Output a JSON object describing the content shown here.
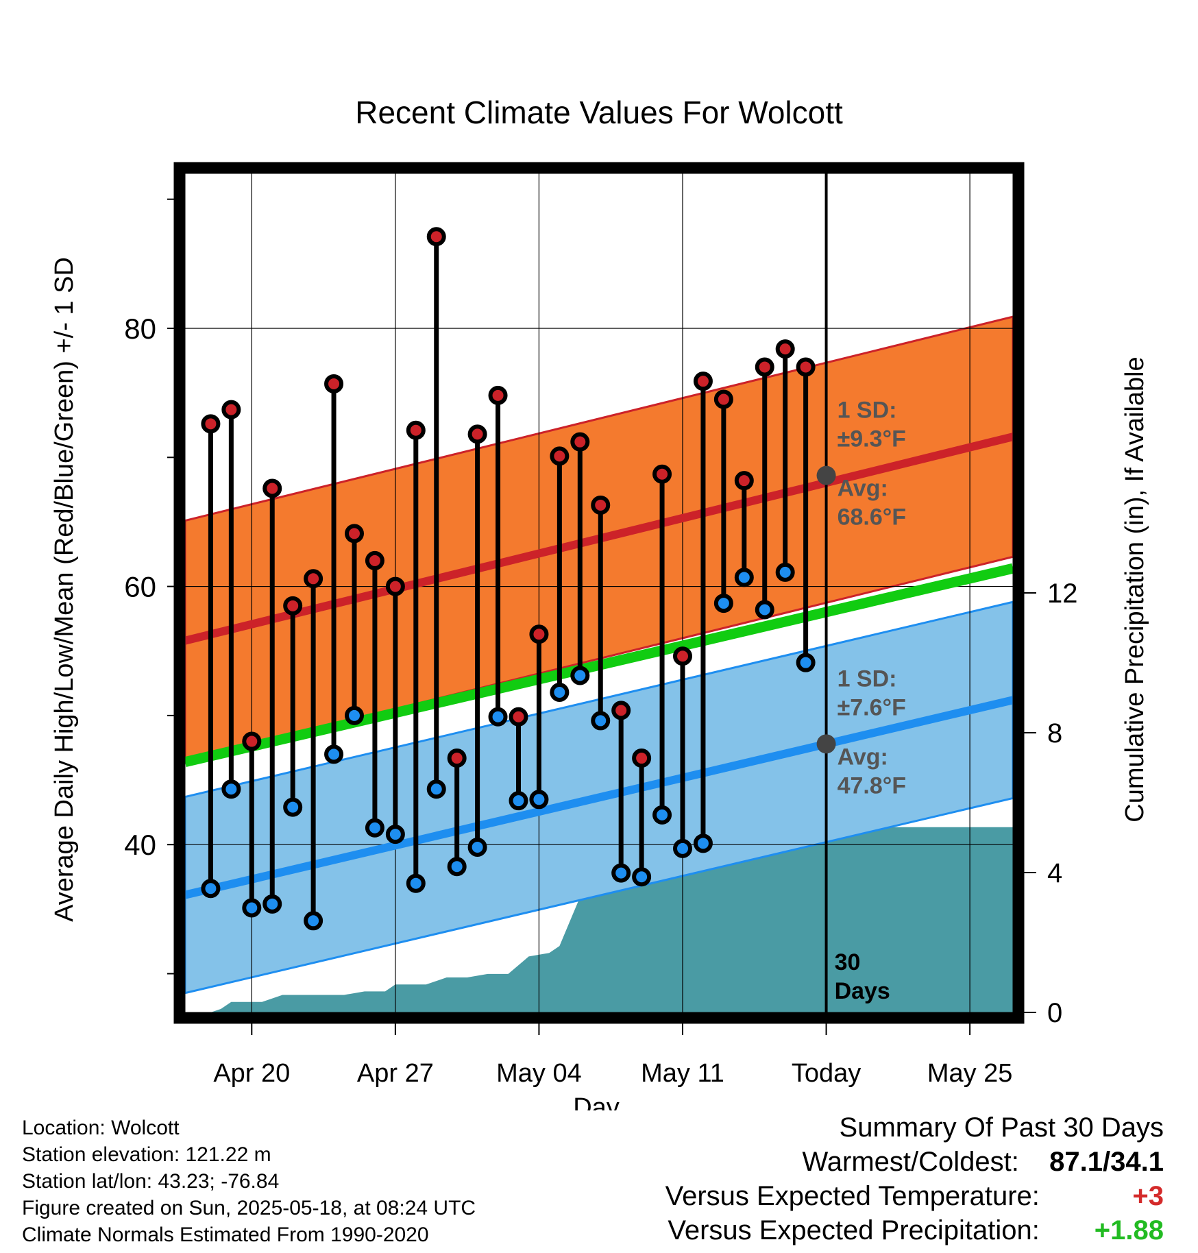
{
  "chart_data": {
    "type": "line",
    "title": "Recent Climate Values For Wolcott",
    "xlabel": "Day",
    "ylabel": "Average Daily High/Low/Mean (Red/Blue/Green) +/- 1 SD",
    "y2label": "Cumulative Precipitation (in), If Available",
    "ylim": [
      27,
      92
    ],
    "y2lim": [
      0,
      24
    ],
    "x_tick_labels": [
      "Apr 20",
      "Apr 27",
      "May 04",
      "May 11",
      "Today",
      "May 25"
    ],
    "x_tick_days": [
      2,
      9,
      16,
      23,
      30,
      37
    ],
    "xlim": [
      -1.25,
      39.1
    ],
    "y_tick_labels": [
      "40",
      "60",
      "80"
    ],
    "y_tick_values": [
      40,
      60,
      80
    ],
    "y2_tick_labels": [
      "0",
      "4",
      "8",
      "12"
    ],
    "y2_tick_values": [
      0,
      4,
      8,
      12
    ],
    "daily_high": [
      72.6,
      73.7,
      48.0,
      67.6,
      58.5,
      60.6,
      75.7,
      64.1,
      62.0,
      60.0,
      72.1,
      87.1,
      46.7,
      71.8,
      74.8,
      49.9,
      56.3,
      70.1,
      71.2,
      66.3,
      50.4,
      46.7,
      68.7,
      54.6,
      75.9,
      74.5,
      68.2,
      77.0,
      78.4,
      77.0
    ],
    "daily_low": [
      36.6,
      44.3,
      35.1,
      35.4,
      42.9,
      34.1,
      47.0,
      50.0,
      41.3,
      40.8,
      37.0,
      44.3,
      38.3,
      39.8,
      49.9,
      43.4,
      43.5,
      51.8,
      53.1,
      49.6,
      37.8,
      37.5,
      42.3,
      39.7,
      40.1,
      58.7,
      60.7,
      58.2,
      61.1,
      54.1
    ],
    "normal_high": {
      "name": "Avg:",
      "value_label": "68.6°F",
      "sd_label": "±9.3°F",
      "start": 55.8,
      "end": 71.6,
      "today": 68.6,
      "sd": 9.3
    },
    "normal_low": {
      "name": "Avg:",
      "value_label": "47.8°F",
      "sd_label": "±7.6°F",
      "start": 36.1,
      "end": 51.2,
      "today": 47.8,
      "sd": 7.6
    },
    "normal_mean": {
      "start": 46.4,
      "end": 61.4
    },
    "sd_heading": "1 SD:",
    "precip_cumulative": [
      [
        0.0,
        0.0
      ],
      [
        0.5,
        0.1
      ],
      [
        1.0,
        0.3
      ],
      [
        1.5,
        0.3
      ],
      [
        2.5,
        0.3
      ],
      [
        3.5,
        0.5
      ],
      [
        4.5,
        0.5
      ],
      [
        6.5,
        0.5
      ],
      [
        7.5,
        0.6
      ],
      [
        8.5,
        0.6
      ],
      [
        9.0,
        0.8
      ],
      [
        10.5,
        0.8
      ],
      [
        11.5,
        1.0
      ],
      [
        12.5,
        1.0
      ],
      [
        13.5,
        1.1
      ],
      [
        14.5,
        1.1
      ],
      [
        15.5,
        1.6
      ],
      [
        16.5,
        1.7
      ],
      [
        17.0,
        1.9
      ],
      [
        17.5,
        2.6
      ],
      [
        18.0,
        3.3
      ],
      [
        18.5,
        4.2
      ],
      [
        19.0,
        4.5
      ],
      [
        22.5,
        4.5
      ],
      [
        23.5,
        4.5
      ],
      [
        24.5,
        4.6
      ],
      [
        26.5,
        4.6
      ],
      [
        27.5,
        4.6
      ],
      [
        28.5,
        4.9
      ],
      [
        29.5,
        5.3
      ],
      [
        30.0,
        5.3
      ],
      [
        39.1,
        5.3
      ]
    ],
    "today_day": 30,
    "days_label_line1": "30",
    "days_label_line2": "Days",
    "grid": true,
    "colors": {
      "high_band": "#f47a2e",
      "high_line": "#cc2229",
      "low_band": "#84c2e9",
      "low_line": "#1e8ef0",
      "mean_line": "#11cc11",
      "precip": "#4a9ba4",
      "high_dot": "#cc2229",
      "low_dot": "#1e8ef0",
      "avg_dot": "#444444",
      "annotation": "#555555"
    }
  },
  "footer": {
    "location": "Location: Wolcott",
    "elevation": "Station elevation: 121.22 m",
    "latlon": "Station lat/lon: 43.23; -76.84",
    "created": "Figure created on Sun, 2025-05-18, at 08:24 UTC",
    "normals": "Climate Normals Estimated From 1990-2020"
  },
  "summary": {
    "heading": "Summary Of Past 30 Days",
    "warmest_label": "Warmest/Coldest:",
    "warmest_value": "87.1/34.1",
    "temp_label": "Versus Expected Temperature:",
    "temp_value": "+3",
    "precip_label": "Versus Expected Precipitation:",
    "precip_value": "+1.88",
    "temp_color": "#d42a2a",
    "precip_color": "#22bb22"
  }
}
